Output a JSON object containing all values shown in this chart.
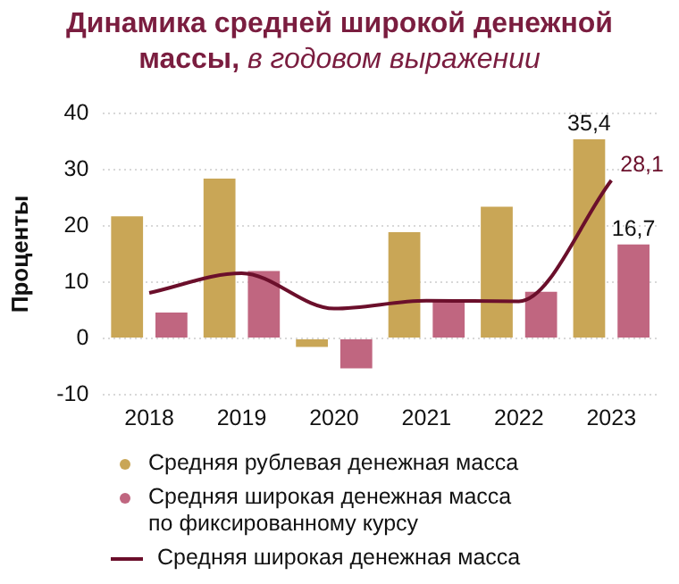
{
  "chart_data": {
    "type": "bar",
    "title": "Динамика средней широкой денежной массы,",
    "subtitle": "в годовом выражении",
    "ylabel": "Проценты",
    "categories": [
      "2018",
      "2019",
      "2020",
      "2021",
      "2022",
      "2023"
    ],
    "series": [
      {
        "name": "Средняя рублевая денежная масса",
        "color": "#c9a656",
        "values": [
          21.7,
          28.4,
          -1.5,
          18.9,
          23.4,
          35.4
        ],
        "value_labels": [
          null,
          null,
          null,
          null,
          null,
          "35,4"
        ]
      },
      {
        "name": "Средняя широкая денежная масса по фиксированному курсу",
        "color": "#c06680",
        "values": [
          4.6,
          12.0,
          -5.3,
          7.0,
          8.3,
          16.7
        ],
        "value_labels": [
          null,
          null,
          null,
          null,
          null,
          "16,7"
        ]
      },
      {
        "name": "Средняя широкая денежная масса",
        "type": "line",
        "color": "#6b0f2b",
        "values": [
          8.1,
          11.6,
          5.3,
          6.7,
          6.6,
          28.1
        ],
        "value_labels": [
          null,
          null,
          null,
          null,
          null,
          "28,1"
        ]
      }
    ],
    "ylim": [
      -10,
      40
    ],
    "yticks": [
      -10,
      0,
      10,
      20,
      30,
      40
    ],
    "grid": "y",
    "legend": "bottom",
    "marker": "none"
  }
}
